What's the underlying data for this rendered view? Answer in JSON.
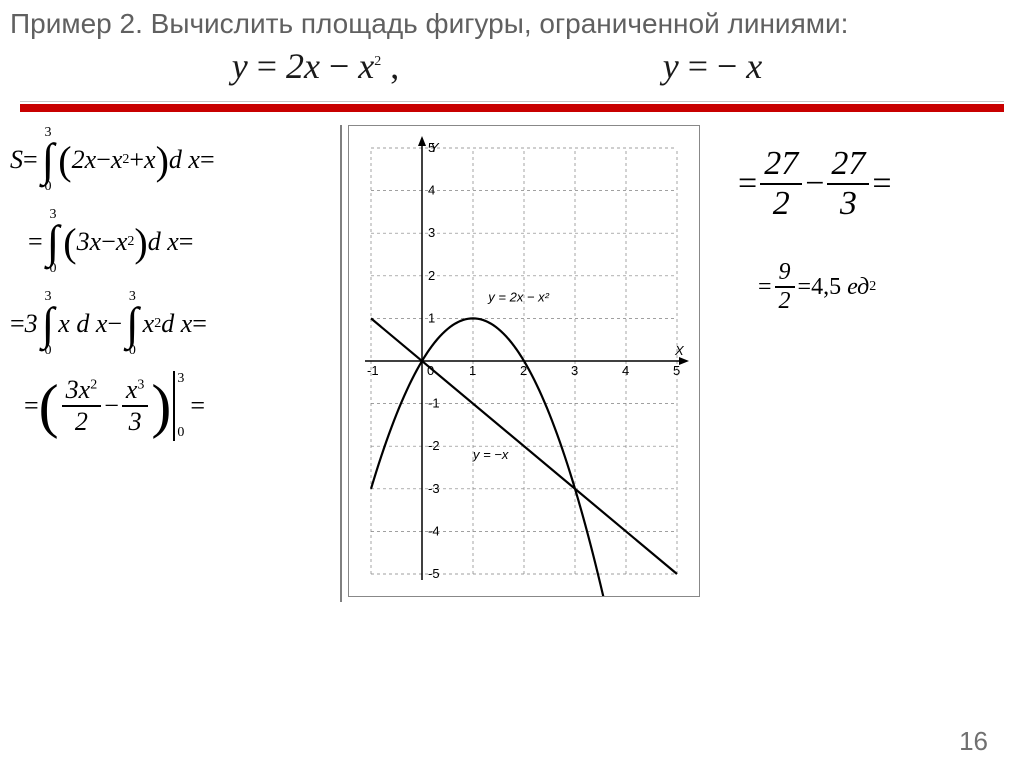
{
  "title": "Пример 2. Вычислить площадь фигуры, ограниченной линиями:",
  "top_eqns": {
    "e1_lhs": "y",
    "e1_rhs_a": "2x",
    "e1_rhs_b": "x",
    "e2_lhs": "y",
    "e2_rhs": "x"
  },
  "left": {
    "row1": {
      "upper": "3",
      "lower": "0",
      "inside_a": "2x",
      "inside_b": "x",
      "inside_c": "x",
      "dx": "d x"
    },
    "row2": {
      "upper": "3",
      "lower": "0",
      "inside_a": "3x",
      "inside_b": "x",
      "dx": "d x"
    },
    "row3": {
      "coef": "3",
      "up1": "3",
      "lo1": "0",
      "body1": "x d x",
      "up2": "3",
      "lo2": "0",
      "body2_a": "x",
      "body2_dx": " d x"
    },
    "row4": {
      "n1_a": "3x",
      "d1": "2",
      "n2_a": "x",
      "d2": "3",
      "eval_up": "3",
      "eval_lo": "0"
    }
  },
  "right": {
    "r1": {
      "n1": "27",
      "d1": "2",
      "n2": "27",
      "d2": "3"
    },
    "r2": {
      "n": "9",
      "d": "2",
      "val": "4,5",
      "unit": "ед"
    }
  },
  "graph": {
    "xlim": [
      -1,
      5
    ],
    "ylim": [
      -5,
      5
    ],
    "xticks": [
      -1,
      0,
      1,
      2,
      3,
      4,
      5
    ],
    "yticks": [
      -5,
      -4,
      -3,
      -2,
      -1,
      0,
      1,
      2,
      3,
      4,
      5
    ],
    "axis_color": "#000000",
    "grid_color": "#808080",
    "bg": "#ffffff",
    "curve_color": "#000000",
    "line_color": "#000000",
    "x_label": "X",
    "y_label": "Y",
    "label_parabola": "y = 2x − x²",
    "label_line": "y = −x",
    "parabola": {
      "type": "quadratic",
      "a": -1,
      "b": 2,
      "c": 0
    },
    "line": {
      "type": "linear",
      "m": -1,
      "b": 0
    }
  },
  "page_number": "16",
  "colors": {
    "title_gray": "#606060",
    "red_bar": "#c80000",
    "text": "#000000"
  }
}
